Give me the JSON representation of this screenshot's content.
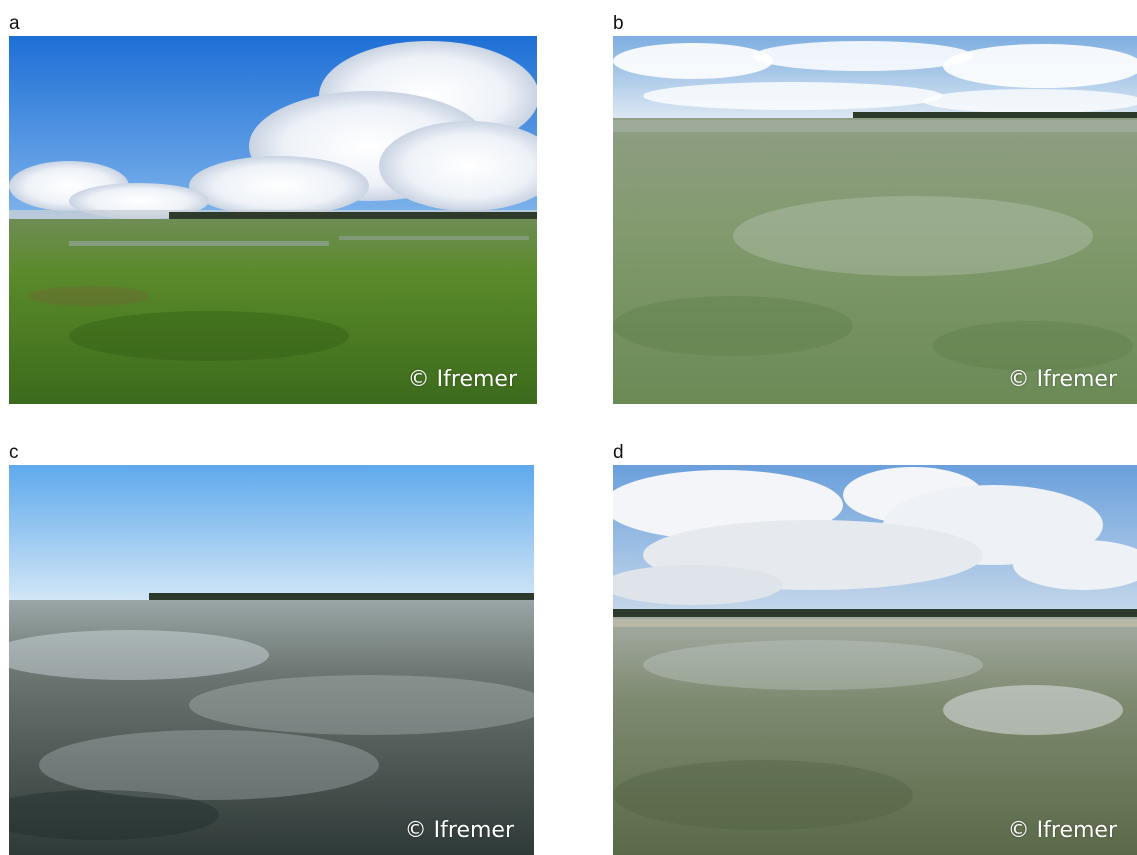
{
  "panels": [
    {
      "letter": "a",
      "credit": "© Ifremer"
    },
    {
      "letter": "b",
      "credit": "© Ifremer"
    },
    {
      "letter": "c",
      "credit": "© Ifremer"
    },
    {
      "letter": "d",
      "credit": "© Ifremer"
    }
  ],
  "colors": {
    "sky_blue": "#2f86e0",
    "seagrass_green": "#4f7f2a",
    "pale_seagrass": "#8a9f78",
    "dark_flat": "#3e4a44"
  }
}
